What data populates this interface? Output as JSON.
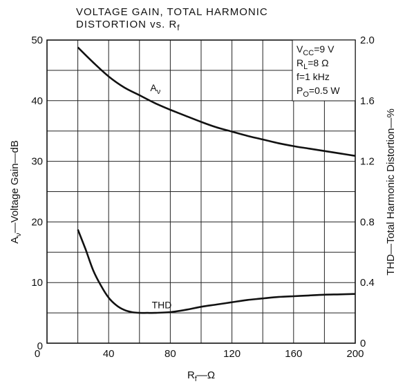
{
  "chart_data": {
    "type": "line",
    "title_line1": "VOLTAGE GAIN, TOTAL HARMONIC",
    "title_line2_main": "DISTORTION vs. R",
    "title_line2_sub": "f",
    "xlabel": {
      "main": "R",
      "sub": "f",
      "rest": "—Ω"
    },
    "ylabel_left": {
      "main": "A",
      "sub": "ν",
      "rest": "—Voltage Gain—dB"
    },
    "ylabel_right": "THD—Total Harmonic Distortion—%",
    "xlim": [
      0,
      200
    ],
    "ylim_left": [
      0,
      50
    ],
    "ylim_right": [
      0,
      2.0
    ],
    "x_ticks": [
      "0",
      "40",
      "80",
      "120",
      "160",
      "200"
    ],
    "x_tick_values": [
      0,
      40,
      80,
      120,
      160,
      200
    ],
    "y_left_ticks": [
      "0",
      "10",
      "20",
      "30",
      "40",
      "50"
    ],
    "y_left_tick_values": [
      0,
      10,
      20,
      30,
      40,
      50
    ],
    "y_right_ticks": [
      "0",
      "0.4",
      "0.8",
      "1.2",
      "1.6",
      "2.0"
    ],
    "y_right_tick_values": [
      0,
      0.4,
      0.8,
      1.2,
      1.6,
      2.0
    ],
    "grid": true,
    "conditions": [
      {
        "main": "V",
        "sub": "CC",
        "rest": "=9 V"
      },
      {
        "main": "R",
        "sub": "L",
        "rest": "=8 Ω"
      },
      {
        "main": "f=1 kHz",
        "sub": "",
        "rest": ""
      },
      {
        "main": "P",
        "sub": "O",
        "rest": "=0.5 W"
      }
    ],
    "series": [
      {
        "name": "Aν",
        "label": {
          "main": "A",
          "sub": "ν"
        },
        "axis": "left",
        "x": [
          20,
          30,
          40,
          50,
          60,
          70,
          80,
          90,
          100,
          110,
          120,
          130,
          140,
          150,
          160,
          170,
          180,
          190,
          200
        ],
        "y": [
          48.8,
          46.3,
          44.0,
          42.2,
          40.9,
          39.6,
          38.5,
          37.5,
          36.5,
          35.6,
          34.9,
          34.2,
          33.6,
          33.0,
          32.5,
          32.1,
          31.7,
          31.3,
          30.9
        ]
      },
      {
        "name": "THD",
        "label": {
          "main": "THD",
          "sub": ""
        },
        "axis": "right",
        "x": [
          20,
          25,
          30,
          35,
          40,
          45,
          50,
          55,
          60,
          65,
          70,
          80,
          90,
          100,
          110,
          120,
          130,
          140,
          150,
          160,
          170,
          180,
          190,
          200
        ],
        "y": [
          0.75,
          0.62,
          0.48,
          0.38,
          0.3,
          0.25,
          0.22,
          0.205,
          0.2,
          0.2,
          0.2,
          0.205,
          0.22,
          0.24,
          0.255,
          0.27,
          0.285,
          0.295,
          0.305,
          0.31,
          0.315,
          0.32,
          0.322,
          0.325
        ]
      }
    ]
  }
}
